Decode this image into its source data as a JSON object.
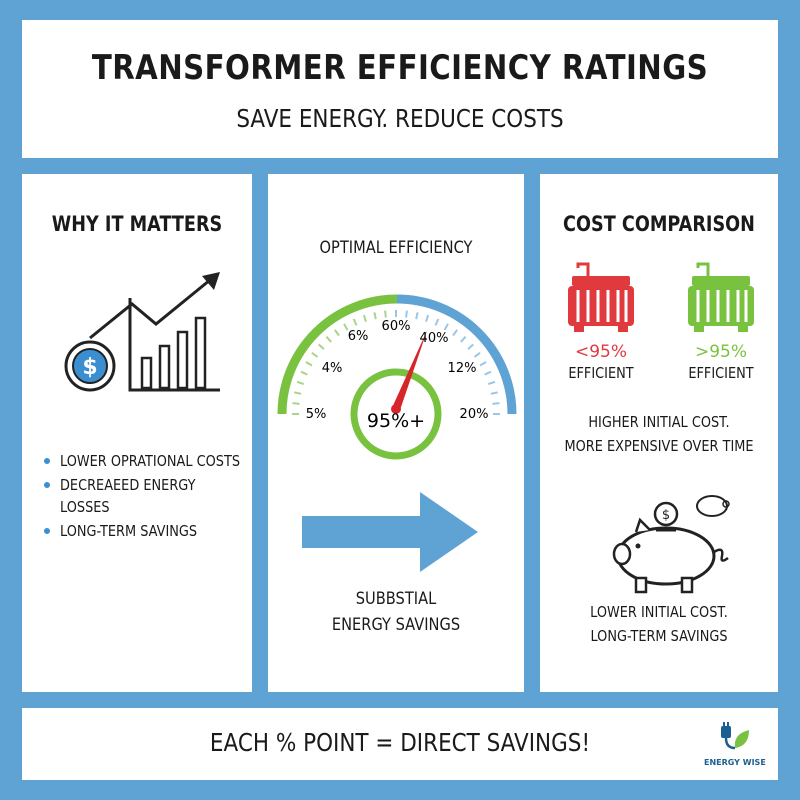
{
  "header": {
    "title": "TRANSFORMER EFFICIENCY RATINGS",
    "subtitle": "SAVE ENERGY. REDUCE COSTS"
  },
  "why": {
    "heading": "WHY IT MATTERS",
    "bullets": [
      "LOWER OPRATIONAL COSTS",
      "DECREAEED ENERGY LOSSES",
      "LONG-TERM SAVINGS"
    ]
  },
  "gauge": {
    "title": "OPTIMAL EFFICIENCY",
    "center_label": "95%+",
    "ticks": [
      "5%",
      "4%",
      "6%",
      "60%",
      "40%",
      "12%",
      "20%"
    ],
    "needle_value_fraction": 0.62
  },
  "arrow_caption": {
    "line1": "SUBBSTIAL",
    "line2": "ENERGY SAVINGS"
  },
  "cost": {
    "heading": "COST COMPARISON",
    "low": {
      "pct": "<95%",
      "label": "EFFICIENT",
      "color": "#e0393e"
    },
    "high": {
      "pct": ">95%",
      "label": "EFFICIENT",
      "color": "#79c23f"
    },
    "note1_line1": "HIGHER INITIAL COST.",
    "note1_line2": "MORE EXPENSIVE OVER TIME",
    "note2_line1": "LOWER INITIAL COST.",
    "note2_line2": "LONG-TERM SAVINGS"
  },
  "footer": {
    "text": "EACH % POINT = DIRECT SAVINGS!",
    "logo_text": "ENERGY WISE"
  },
  "colors": {
    "background": "#5fa3d4",
    "accent_blue": "#3b8fd0",
    "accent_green": "#79c23f",
    "accent_red": "#e0393e"
  }
}
